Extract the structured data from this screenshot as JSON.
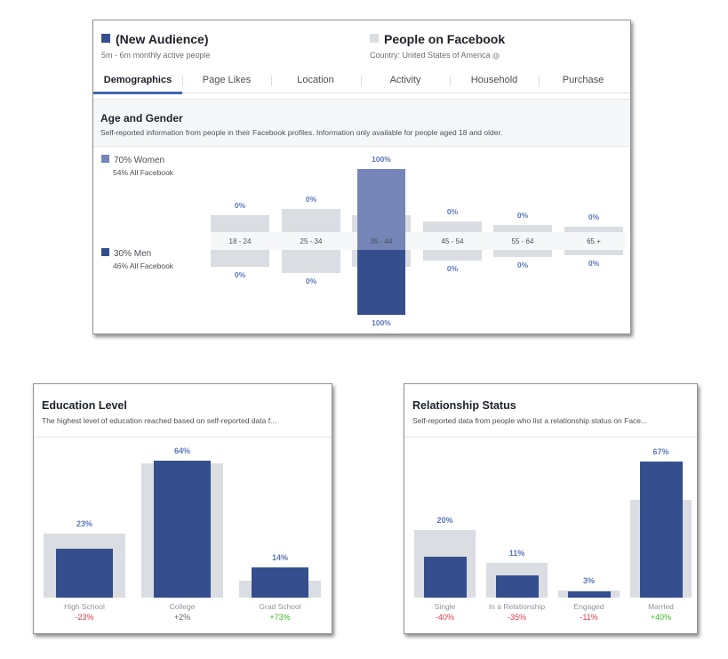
{
  "colors": {
    "selected": "#354f8e",
    "women": "#7585b7",
    "baseline": "#dadde1",
    "pct_label": "#5b78b7",
    "negative": "#e0394a",
    "positive": "#42b72a",
    "tab_active": "#4267b2"
  },
  "header": {
    "audience": {
      "name": "(New Audience)",
      "subtitle": "5m - 6m monthly active people"
    },
    "compare": {
      "name": "People on Facebook",
      "subtitle": "Country: United States of America"
    }
  },
  "tabs": [
    "Demographics",
    "Page Likes",
    "Location",
    "Activity",
    "Household",
    "Purchase"
  ],
  "active_tab": "Demographics",
  "age_gender": {
    "title": "Age and Gender",
    "description": "Self-reported information from people in their Facebook profiles. Information only available for people aged 18 and older.",
    "women": {
      "label": "70% Women",
      "baseline": "54% All Facebook"
    },
    "men": {
      "label": "30% Men",
      "baseline": "46% All Facebook"
    },
    "age_groups": [
      "18 - 24",
      "25 - 34",
      "35 - 44",
      "45 - 54",
      "55 - 64",
      "65 +"
    ],
    "women_pct_labels": [
      "0%",
      "0%",
      "100%",
      "0%",
      "0%",
      "0%"
    ],
    "men_pct_labels": [
      "0%",
      "0%",
      "100%",
      "0%",
      "0%",
      "0%"
    ],
    "women_values": [
      0,
      0,
      100,
      0,
      0,
      0
    ],
    "men_values": [
      0,
      0,
      100,
      0,
      0,
      0
    ],
    "women_baseline_levels": [
      0.24,
      0.33,
      0.24,
      0.15,
      0.1,
      0.07
    ],
    "men_baseline_levels": [
      0.24,
      0.33,
      0.24,
      0.15,
      0.1,
      0.07
    ]
  },
  "education": {
    "title": "Education Level",
    "description": "The highest level of education reached based on self-reported data f...",
    "categories": [
      "High School",
      "College",
      "Grad School"
    ],
    "pct_labels": [
      "23%",
      "64%",
      "14%"
    ],
    "changes": [
      "-23%",
      "+2%",
      "+73%"
    ],
    "change_types": [
      "neg",
      "neu",
      "pos"
    ],
    "values": [
      23,
      64,
      14
    ],
    "baseline_levels": [
      30,
      63,
      8
    ]
  },
  "relationship": {
    "title": "Relationship Status",
    "description": "Self-reported data from people who list a relationship status on Face...",
    "categories": [
      "Single",
      "In a Relationship",
      "Engaged",
      "Married"
    ],
    "pct_labels": [
      "20%",
      "11%",
      "3%",
      "67%"
    ],
    "changes": [
      "-40%",
      "-35%",
      "-11%",
      "+40%"
    ],
    "change_types": [
      "neg",
      "neg",
      "neg",
      "pos"
    ],
    "values": [
      20,
      11,
      3,
      67
    ],
    "baseline_levels": [
      33,
      17,
      3.4,
      48
    ]
  }
}
